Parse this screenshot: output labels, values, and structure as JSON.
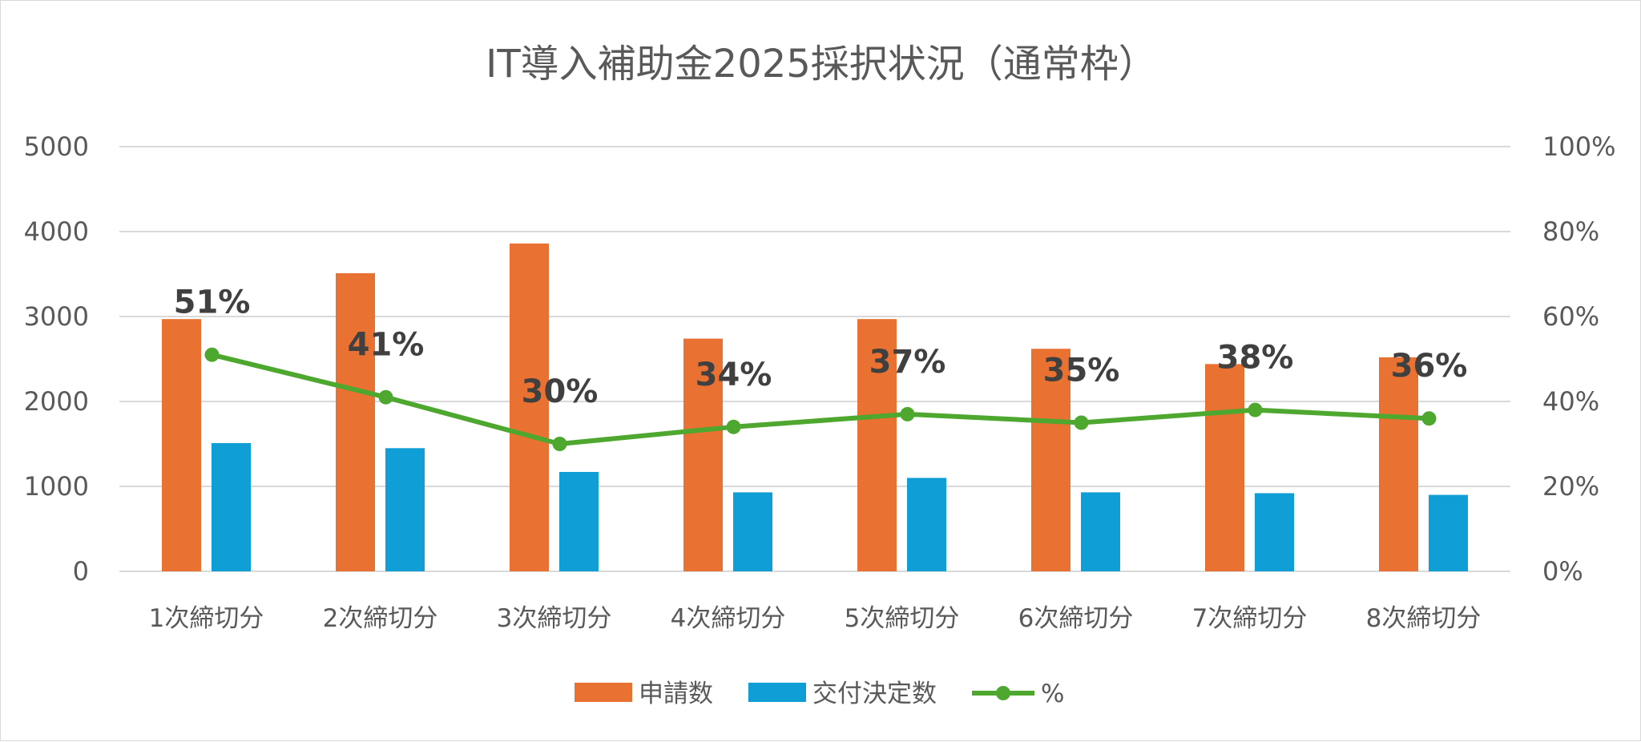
{
  "chart_data": {
    "type": "bar",
    "title": "IT導入補助金2025採択状況（通常枠）",
    "categories": [
      "1次締切分",
      "2次締切分",
      "3次締切分",
      "4次締切分",
      "5次締切分",
      "6次締切分",
      "7次締切分",
      "8次締切分"
    ],
    "series": [
      {
        "name": "申請数",
        "type": "bar",
        "axis": "left",
        "color": "#E97132",
        "values": [
          2970,
          3510,
          3860,
          2740,
          2970,
          2620,
          2440,
          2520
        ]
      },
      {
        "name": "交付決定数",
        "type": "bar",
        "axis": "left",
        "color": "#0F9ED5",
        "values": [
          1510,
          1450,
          1170,
          930,
          1100,
          930,
          920,
          900
        ]
      },
      {
        "name": "%",
        "type": "line",
        "axis": "right",
        "color": "#4EA72E",
        "values": [
          51,
          41,
          30,
          34,
          37,
          35,
          38,
          36
        ],
        "labels": [
          "51%",
          "41%",
          "30%",
          "34%",
          "37%",
          "35%",
          "38%",
          "36%"
        ]
      }
    ],
    "y_left": {
      "min": 0,
      "max": 5000,
      "ticks": [
        "0",
        "1000",
        "2000",
        "3000",
        "4000",
        "5000"
      ]
    },
    "y_right": {
      "min": 0,
      "max": 100,
      "ticks": [
        "0%",
        "20%",
        "40%",
        "60%",
        "80%",
        "100%"
      ]
    },
    "grid": true,
    "legend_position": "bottom"
  }
}
